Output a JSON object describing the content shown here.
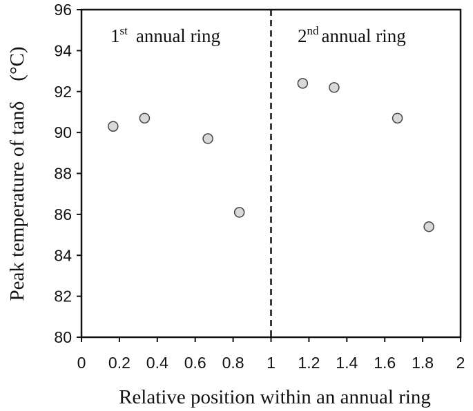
{
  "chart_data": {
    "type": "scatter",
    "xlabel": "Relative position within an annual ring",
    "ylabel": "Peak temperature of tanδ　(°C)",
    "xlim": [
      0,
      2
    ],
    "ylim": [
      80,
      96
    ],
    "x_ticks": [
      "0",
      "0.2",
      "0.4",
      "0.6",
      "0.8",
      "1",
      "1.2",
      "1.4",
      "1.6",
      "1.8",
      "2"
    ],
    "y_ticks": [
      "80",
      "82",
      "84",
      "86",
      "88",
      "90",
      "92",
      "94",
      "96"
    ],
    "x_tick_values": [
      0,
      0.2,
      0.4,
      0.6,
      0.8,
      1,
      1.2,
      1.4,
      1.6,
      1.8,
      2
    ],
    "y_tick_values": [
      80,
      82,
      84,
      86,
      88,
      90,
      92,
      94,
      96
    ],
    "points": [
      {
        "x": 0.167,
        "y": 90.3
      },
      {
        "x": 0.333,
        "y": 90.7
      },
      {
        "x": 0.667,
        "y": 89.7
      },
      {
        "x": 0.833,
        "y": 86.1
      },
      {
        "x": 1.167,
        "y": 92.4
      },
      {
        "x": 1.333,
        "y": 92.2
      },
      {
        "x": 1.667,
        "y": 90.7
      },
      {
        "x": 1.833,
        "y": 85.4
      }
    ],
    "divider_x": 1,
    "annotations": [
      {
        "number": "1",
        "sup": "st",
        "text": "annual ring"
      },
      {
        "number": "2",
        "sup": "nd",
        "text": "annual ring"
      }
    ],
    "grid": false,
    "marker_fill": "#d9d9d9",
    "marker_stroke": "#444444"
  }
}
